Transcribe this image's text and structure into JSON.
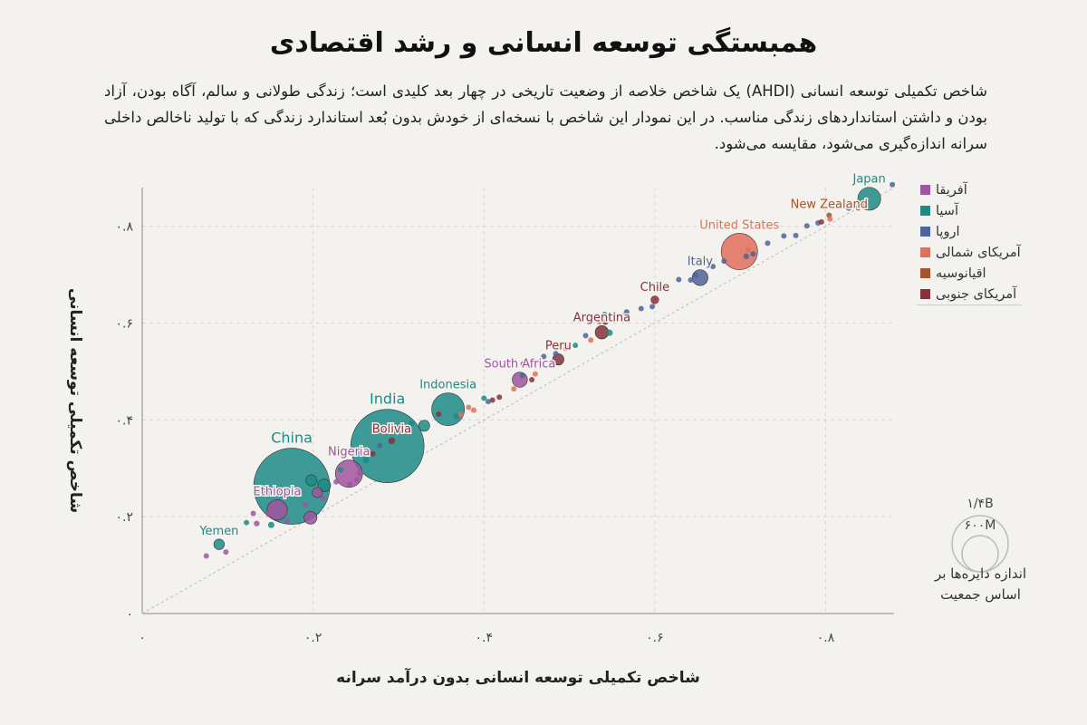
{
  "title": "همبستگی توسعه انسانی و رشد اقتصادی",
  "subtitle": "شاخص تکمیلی توسعه انسانی (AHDI) یک شاخص خلاصه از وضعیت تاریخی در چهار بعد کلیدی است؛ زندگی طولانی و سالم، آگاه بودن، آزاد بودن و داشتن استانداردهای زندگی مناسب. در این نمودار این شاخص با نسخه‌ای از خودش بدون بُعد استاندارد زندگی که با تولید ناخالص داخلی سرانه اندازه‌گیری می‌شود، مقایسه می‌شود.",
  "colors": {
    "africa": "#a0559f",
    "asia": "#1c8b86",
    "europe": "#4f6498",
    "north_america": "#e0705b",
    "oceania": "#a2542c",
    "south_america": "#88303b"
  },
  "legend": [
    {
      "label": "آفریقا",
      "color": "#a0559f"
    },
    {
      "label": "آسیا",
      "color": "#1c8b86"
    },
    {
      "label": "اروپا",
      "color": "#4f6498"
    },
    {
      "label": "آمریکای شمالی",
      "color": "#e0705b"
    },
    {
      "label": "اقیانوسیه",
      "color": "#a2542c"
    },
    {
      "label": "آمریکای جنوبی",
      "color": "#88303b"
    }
  ],
  "size_legend": {
    "large": "۱/۴B",
    "small": "۶۰۰M",
    "note": "اندازه دایره‌ها بر اساس جمعیت"
  },
  "chart_data": {
    "type": "scatter",
    "xlabel": "شاخص تکمیلی توسعه انسانی بدون درآمد سرانه",
    "ylabel": "شاخص تکمیلی توسعه انسانی",
    "xlim": [
      0,
      0.88
    ],
    "ylim": [
      0,
      0.88
    ],
    "x_ticks": [
      {
        "v": 0,
        "t": "۰"
      },
      {
        "v": 0.2,
        "t": "۰.۲"
      },
      {
        "v": 0.4,
        "t": "۰.۴"
      },
      {
        "v": 0.6,
        "t": "۰.۶"
      },
      {
        "v": 0.8,
        "t": "۰.۸"
      }
    ],
    "y_ticks": [
      {
        "v": 0,
        "t": "۰"
      },
      {
        "v": 0.2,
        "t": "۰.۲"
      },
      {
        "v": 0.4,
        "t": "۰.۴"
      },
      {
        "v": 0.6,
        "t": "۰.۶"
      },
      {
        "v": 0.8,
        "t": "۰.۸"
      }
    ],
    "grid": true,
    "diagonal_reference": true,
    "legend_position": "right",
    "points": [
      {
        "name": "China",
        "region": "asia",
        "x": 0.175,
        "y": 0.263,
        "pop": 1400,
        "label": "China",
        "labelSize": 16
      },
      {
        "name": "India",
        "region": "asia",
        "x": 0.287,
        "y": 0.346,
        "pop": 1300,
        "label": "India",
        "labelSize": 16
      },
      {
        "name": "Japan",
        "region": "asia",
        "x": 0.851,
        "y": 0.857,
        "pop": 127,
        "label": "Japan",
        "labelSize": 13
      },
      {
        "name": "United States",
        "region": "north_america",
        "x": 0.699,
        "y": 0.748,
        "pop": 320,
        "label": "United States",
        "labelSize": 13
      },
      {
        "name": "Indonesia",
        "region": "asia",
        "x": 0.358,
        "y": 0.422,
        "pop": 260,
        "label": "Indonesia",
        "labelSize": 13
      },
      {
        "name": "Nigeria",
        "region": "africa",
        "x": 0.242,
        "y": 0.289,
        "pop": 180,
        "label": "Nigeria",
        "labelSize": 13
      },
      {
        "name": "Ethiopia",
        "region": "africa",
        "x": 0.158,
        "y": 0.214,
        "pop": 100,
        "label": "Ethiopia",
        "labelSize": 13
      },
      {
        "name": "Bolivia",
        "region": "south_america",
        "x": 0.292,
        "y": 0.357,
        "pop": 11,
        "label": "Bolivia",
        "labelSize": 13
      },
      {
        "name": "South Africa",
        "region": "africa",
        "x": 0.442,
        "y": 0.483,
        "pop": 55,
        "label": "South Africa",
        "labelSize": 13
      },
      {
        "name": "Peru",
        "region": "south_america",
        "x": 0.487,
        "y": 0.525,
        "pop": 31,
        "label": "Peru",
        "labelSize": 13
      },
      {
        "name": "Argentina",
        "region": "south_america",
        "x": 0.538,
        "y": 0.581,
        "pop": 43,
        "label": "Argentina",
        "labelSize": 13
      },
      {
        "name": "Chile",
        "region": "south_america",
        "x": 0.6,
        "y": 0.648,
        "pop": 18,
        "label": "Chile",
        "labelSize": 13
      },
      {
        "name": "Italy",
        "region": "europe",
        "x": 0.653,
        "y": 0.694,
        "pop": 60,
        "label": "Italy",
        "labelSize": 13
      },
      {
        "name": "New Zealand",
        "region": "oceania",
        "x": 0.804,
        "y": 0.823,
        "pop": 5,
        "label": "New Zealand",
        "labelSize": 13
      },
      {
        "name": "Yemen",
        "region": "asia",
        "x": 0.09,
        "y": 0.143,
        "pop": 27,
        "label": "Yemen",
        "labelSize": 13
      },
      {
        "name": "a1",
        "region": "africa",
        "x": 0.075,
        "y": 0.119,
        "pop": 4
      },
      {
        "name": "a2",
        "region": "africa",
        "x": 0.098,
        "y": 0.127,
        "pop": 3
      },
      {
        "name": "a3",
        "region": "asia",
        "x": 0.122,
        "y": 0.188,
        "pop": 3
      },
      {
        "name": "a4",
        "region": "africa",
        "x": 0.134,
        "y": 0.186,
        "pop": 8
      },
      {
        "name": "a5",
        "region": "asia",
        "x": 0.151,
        "y": 0.183,
        "pop": 10
      },
      {
        "name": "a6",
        "region": "africa",
        "x": 0.17,
        "y": 0.191,
        "pop": 3
      },
      {
        "name": "a7",
        "region": "africa",
        "x": 0.148,
        "y": 0.205,
        "pop": 7
      },
      {
        "name": "a8",
        "region": "africa",
        "x": 0.13,
        "y": 0.207,
        "pop": 3
      },
      {
        "name": "a9",
        "region": "africa",
        "x": 0.197,
        "y": 0.198,
        "pop": 40
      },
      {
        "name": "a10",
        "region": "africa",
        "x": 0.191,
        "y": 0.225,
        "pop": 6
      },
      {
        "name": "a11",
        "region": "africa",
        "x": 0.212,
        "y": 0.238,
        "pop": 5
      },
      {
        "name": "a12",
        "region": "africa",
        "x": 0.205,
        "y": 0.25,
        "pop": 25
      },
      {
        "name": "a13",
        "region": "asia",
        "x": 0.213,
        "y": 0.265,
        "pop": 40
      },
      {
        "name": "a14",
        "region": "asia",
        "x": 0.198,
        "y": 0.275,
        "pop": 30
      },
      {
        "name": "a15",
        "region": "asia",
        "x": 0.232,
        "y": 0.297,
        "pop": 5
      },
      {
        "name": "a16",
        "region": "africa",
        "x": 0.255,
        "y": 0.29,
        "pop": 10
      },
      {
        "name": "a17",
        "region": "africa",
        "x": 0.251,
        "y": 0.276,
        "pop": 5
      },
      {
        "name": "a18",
        "region": "africa",
        "x": 0.243,
        "y": 0.267,
        "pop": 4
      },
      {
        "name": "a19",
        "region": "africa",
        "x": 0.227,
        "y": 0.272,
        "pop": 4
      },
      {
        "name": "a20",
        "region": "asia",
        "x": 0.252,
        "y": 0.338,
        "pop": 8
      },
      {
        "name": "a21",
        "region": "asia",
        "x": 0.262,
        "y": 0.317,
        "pop": 10
      },
      {
        "name": "a22",
        "region": "south_america",
        "x": 0.27,
        "y": 0.33,
        "pop": 3
      },
      {
        "name": "a23",
        "region": "europe",
        "x": 0.278,
        "y": 0.347,
        "pop": 3
      },
      {
        "name": "a24",
        "region": "asia",
        "x": 0.315,
        "y": 0.393,
        "pop": 8
      },
      {
        "name": "a25",
        "region": "asia",
        "x": 0.33,
        "y": 0.388,
        "pop": 30
      },
      {
        "name": "a26",
        "region": "asia",
        "x": 0.303,
        "y": 0.379,
        "pop": 5
      },
      {
        "name": "a27",
        "region": "south_america",
        "x": 0.347,
        "y": 0.412,
        "pop": 5
      },
      {
        "name": "a28",
        "region": "asia",
        "x": 0.368,
        "y": 0.408,
        "pop": 10
      },
      {
        "name": "a29",
        "region": "north_america",
        "x": 0.373,
        "y": 0.411,
        "pop": 5
      },
      {
        "name": "a30",
        "region": "north_america",
        "x": 0.382,
        "y": 0.426,
        "pop": 4
      },
      {
        "name": "a31",
        "region": "north_america",
        "x": 0.388,
        "y": 0.42,
        "pop": 3
      },
      {
        "name": "a32",
        "region": "asia",
        "x": 0.4,
        "y": 0.445,
        "pop": 6
      },
      {
        "name": "a33",
        "region": "south_america",
        "x": 0.41,
        "y": 0.441,
        "pop": 7
      },
      {
        "name": "a34",
        "region": "south_america",
        "x": 0.418,
        "y": 0.447,
        "pop": 3
      },
      {
        "name": "a35",
        "region": "europe",
        "x": 0.405,
        "y": 0.438,
        "pop": 3
      },
      {
        "name": "a36",
        "region": "north_america",
        "x": 0.435,
        "y": 0.464,
        "pop": 3
      },
      {
        "name": "a37",
        "region": "europe",
        "x": 0.445,
        "y": 0.492,
        "pop": 3
      },
      {
        "name": "a38",
        "region": "africa",
        "x": 0.446,
        "y": 0.516,
        "pop": 3
      },
      {
        "name": "a39",
        "region": "north_america",
        "x": 0.46,
        "y": 0.495,
        "pop": 3
      },
      {
        "name": "a40",
        "region": "south_america",
        "x": 0.456,
        "y": 0.483,
        "pop": 3
      },
      {
        "name": "a41",
        "region": "europe",
        "x": 0.47,
        "y": 0.531,
        "pop": 3
      },
      {
        "name": "a42",
        "region": "europe",
        "x": 0.484,
        "y": 0.537,
        "pop": 3
      },
      {
        "name": "a43",
        "region": "north_america",
        "x": 0.496,
        "y": 0.548,
        "pop": 3
      },
      {
        "name": "a44",
        "region": "asia",
        "x": 0.507,
        "y": 0.554,
        "pop": 3
      },
      {
        "name": "a45",
        "region": "europe",
        "x": 0.519,
        "y": 0.574,
        "pop": 3
      },
      {
        "name": "a46",
        "region": "north_america",
        "x": 0.525,
        "y": 0.565,
        "pop": 3
      },
      {
        "name": "a47",
        "region": "north_america",
        "x": 0.535,
        "y": 0.603,
        "pop": 3
      },
      {
        "name": "a48",
        "region": "asia",
        "x": 0.541,
        "y": 0.618,
        "pop": 3
      },
      {
        "name": "a49",
        "region": "south_america",
        "x": 0.542,
        "y": 0.602,
        "pop": 3
      },
      {
        "name": "a50",
        "region": "asia",
        "x": 0.547,
        "y": 0.58,
        "pop": 10
      },
      {
        "name": "a51",
        "region": "north_america",
        "x": 0.565,
        "y": 0.616,
        "pop": 3
      },
      {
        "name": "a52",
        "region": "europe",
        "x": 0.567,
        "y": 0.623,
        "pop": 6
      },
      {
        "name": "a53",
        "region": "europe",
        "x": 0.584,
        "y": 0.63,
        "pop": 4
      },
      {
        "name": "a54",
        "region": "europe",
        "x": 0.597,
        "y": 0.634,
        "pop": 3
      },
      {
        "name": "a55",
        "region": "europe",
        "x": 0.628,
        "y": 0.69,
        "pop": 5
      },
      {
        "name": "a56",
        "region": "europe",
        "x": 0.642,
        "y": 0.689,
        "pop": 3
      },
      {
        "name": "a57",
        "region": "europe",
        "x": 0.648,
        "y": 0.699,
        "pop": 3
      },
      {
        "name": "a58",
        "region": "europe",
        "x": 0.668,
        "y": 0.717,
        "pop": 5
      },
      {
        "name": "a59",
        "region": "europe",
        "x": 0.681,
        "y": 0.728,
        "pop": 5
      },
      {
        "name": "a60",
        "region": "europe",
        "x": 0.707,
        "y": 0.738,
        "pop": 8
      },
      {
        "name": "a61",
        "region": "europe",
        "x": 0.715,
        "y": 0.743,
        "pop": 4
      },
      {
        "name": "a62",
        "region": "north_america",
        "x": 0.709,
        "y": 0.752,
        "pop": 5
      },
      {
        "name": "a63",
        "region": "europe",
        "x": 0.732,
        "y": 0.765,
        "pop": 3
      },
      {
        "name": "a64",
        "region": "europe",
        "x": 0.751,
        "y": 0.78,
        "pop": 5
      },
      {
        "name": "a65",
        "region": "europe",
        "x": 0.765,
        "y": 0.781,
        "pop": 5
      },
      {
        "name": "a66",
        "region": "europe",
        "x": 0.778,
        "y": 0.801,
        "pop": 4
      },
      {
        "name": "a67",
        "region": "europe",
        "x": 0.791,
        "y": 0.807,
        "pop": 6
      },
      {
        "name": "a68",
        "region": "north_america",
        "x": 0.805,
        "y": 0.815,
        "pop": 3
      },
      {
        "name": "a69",
        "region": "south_america",
        "x": 0.795,
        "y": 0.809,
        "pop": 3
      },
      {
        "name": "a70",
        "region": "europe",
        "x": 0.827,
        "y": 0.838,
        "pop": 8
      },
      {
        "name": "a71",
        "region": "europe",
        "x": 0.833,
        "y": 0.842,
        "pop": 4
      },
      {
        "name": "a72",
        "region": "north_america",
        "x": 0.83,
        "y": 0.846,
        "pop": 3
      },
      {
        "name": "a73",
        "region": "oceania",
        "x": 0.838,
        "y": 0.838,
        "pop": 3
      },
      {
        "name": "a74",
        "region": "europe",
        "x": 0.878,
        "y": 0.886,
        "pop": 3
      }
    ]
  }
}
